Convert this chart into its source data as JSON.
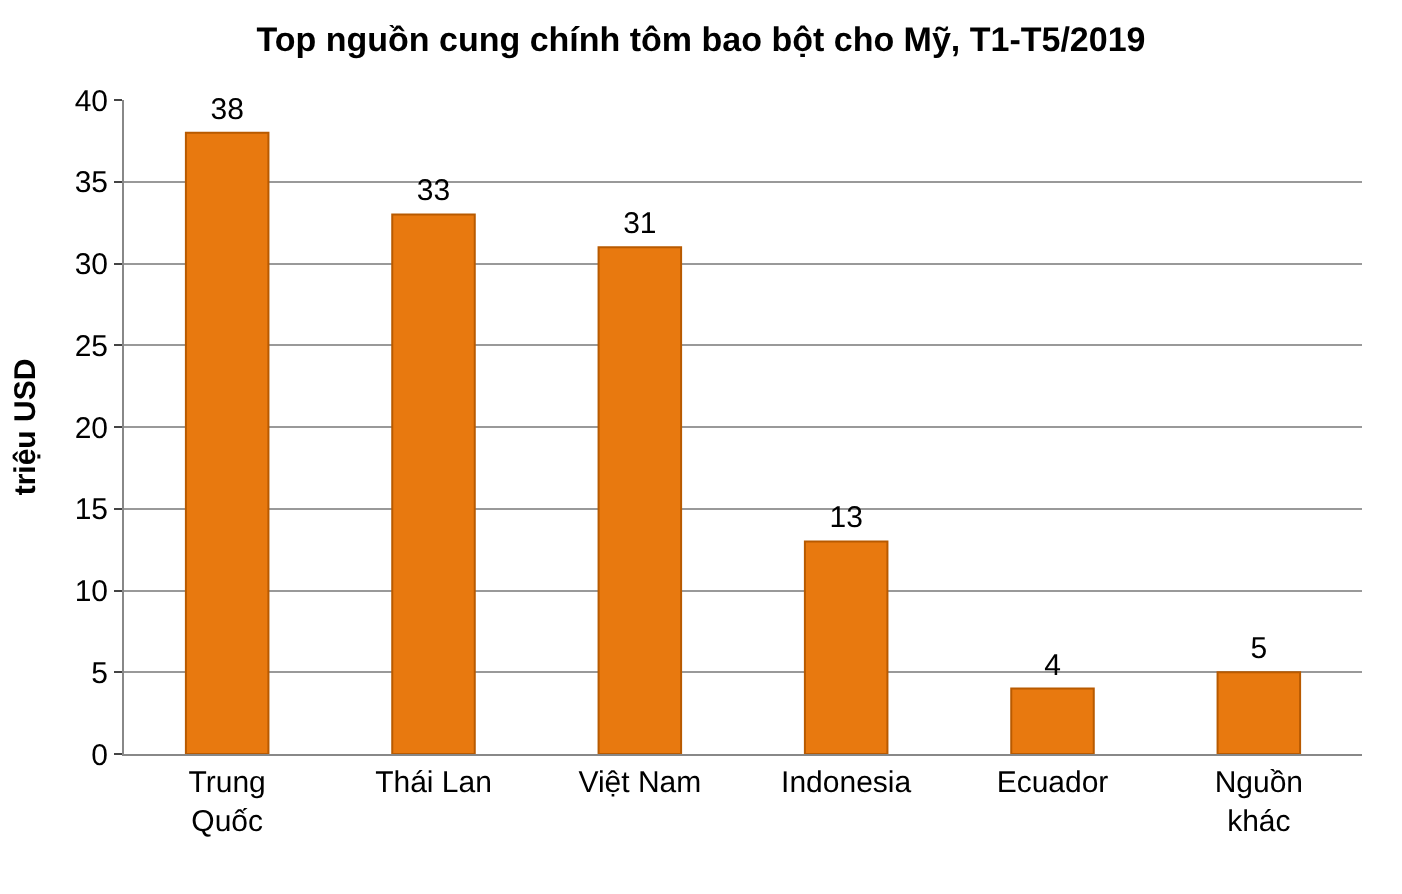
{
  "chart_data": {
    "type": "bar",
    "title": "Top nguồn cung chính tôm bao bột cho Mỹ, T1-T5/2019",
    "ylabel": "triệu USD",
    "categories": [
      "Trung Quốc",
      "Thái Lan",
      "Việt Nam",
      "Indonesia",
      "Ecuador",
      "Nguồn khác"
    ],
    "values": [
      38,
      33,
      31,
      13,
      4,
      5
    ],
    "color": "#e8790f",
    "ylim": [
      0,
      40
    ],
    "yticks": [
      0,
      5,
      10,
      15,
      20,
      25,
      30,
      35,
      40
    ],
    "grid": "y",
    "data_labels": true,
    "legend": false
  }
}
